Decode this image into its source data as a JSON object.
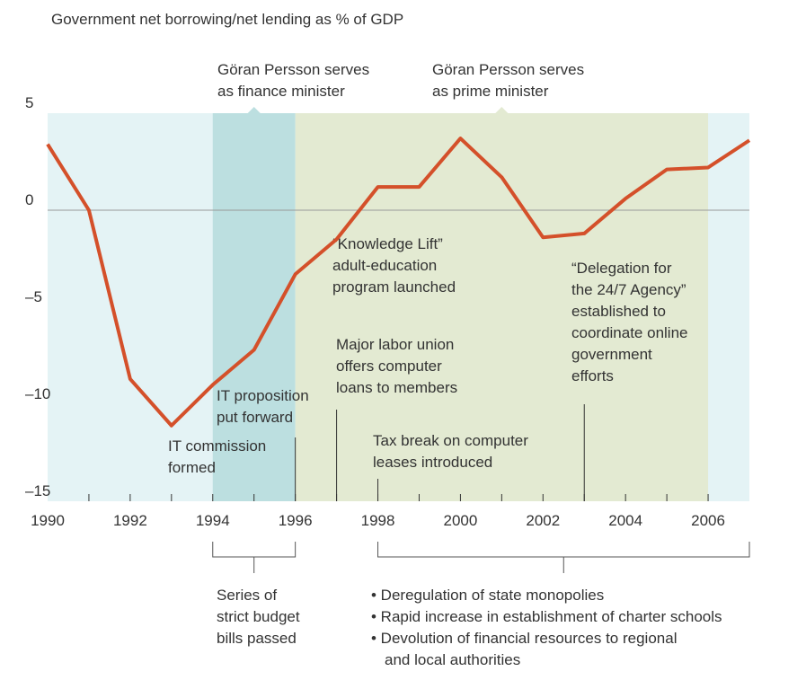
{
  "chart_data": {
    "type": "line",
    "title": "Government net borrowing/net lending as % of GDP",
    "x": [
      1990,
      1991,
      1992,
      1993,
      1994,
      1995,
      1996,
      1997,
      1998,
      1999,
      2000,
      2001,
      2002,
      2003,
      2004,
      2005,
      2006,
      2007
    ],
    "series": [
      {
        "name": "Net lending",
        "color": "#d4502a",
        "values": [
          3.4,
          0,
          -8.7,
          -11.1,
          -9.0,
          -7.2,
          -3.3,
          -1.5,
          1.2,
          1.2,
          3.7,
          1.7,
          -1.4,
          -1.2,
          0.6,
          2.1,
          2.2,
          3.6
        ]
      }
    ],
    "xlim": [
      1990,
      2007
    ],
    "xticks": [
      1990,
      1992,
      1994,
      1996,
      1998,
      2000,
      2002,
      2004,
      2006
    ],
    "ylim": [
      -15,
      5
    ],
    "yticks": [
      {
        "value": -15,
        "label": "–15"
      },
      {
        "value": -10,
        "label": "–10"
      },
      {
        "value": -5,
        "label": "–5"
      },
      0,
      5
    ],
    "background_color": "#e4f3f5",
    "periods": [
      {
        "lines": [
          "Göran Persson serves",
          "as finance minister"
        ],
        "start": 1994,
        "end": 1996,
        "color": "#bcdfe0"
      },
      {
        "lines": [
          "Göran Persson serves",
          "as prime minister"
        ],
        "start": 1996,
        "end": 2006,
        "color": "#e3ead2"
      }
    ],
    "annotations": [
      {
        "lines": [
          "IT commission",
          "formed"
        ]
      },
      {
        "lines": [
          "IT proposition",
          "put forward"
        ],
        "year": 1996
      },
      {
        "lines": [
          "“Knowledge Lift”",
          "adult-education",
          "program launched"
        ],
        "year": 1997
      },
      {
        "lines": [
          "Major labor union",
          "offers computer",
          "loans to members"
        ]
      },
      {
        "lines": [
          "Tax break on computer",
          "leases introduced"
        ],
        "year": 1998
      },
      {
        "lines": [
          "“Delegation for",
          "the 24/7 Agency”",
          "established to",
          "coordinate online",
          "government",
          "efforts"
        ],
        "year": 2003
      }
    ],
    "brackets": [
      {
        "start": 1994,
        "end": 1996,
        "lines": [
          "Series of",
          "strict budget",
          "bills passed"
        ]
      },
      {
        "start": 1998,
        "end": 2007,
        "lines": [
          "• Deregulation of state monopolies",
          "• Rapid increase in establishment of charter schools",
          "• Devolution of financial resources to regional",
          "and local authorities"
        ]
      }
    ]
  }
}
